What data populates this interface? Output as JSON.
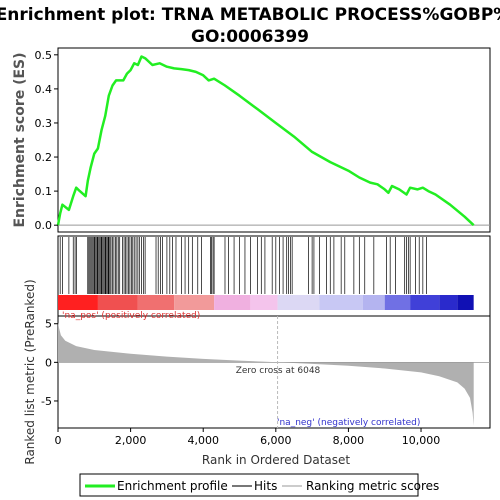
{
  "title_line1": "Enrichment plot: TRNA METABOLIC PROCESS%GOBP%",
  "title_line2": "GO:0006399",
  "colors": {
    "es_line": "#22ee22",
    "hit": "#000000",
    "metric_fill": "#b0b0b0",
    "pos_band": "#ee3333",
    "neg_band": "#2222cc",
    "pos_label": "#dd3333",
    "neg_label": "#3333cc",
    "zero_line": "#bbbbbb"
  },
  "legend": {
    "items": [
      {
        "label": "Enrichment profile",
        "color": "#22ee22",
        "kind": "thick-line"
      },
      {
        "label": "Hits",
        "color": "#777777",
        "kind": "line"
      },
      {
        "label": "Ranking metric scores",
        "color": "#cccccc",
        "kind": "line"
      }
    ]
  },
  "chart_data": {
    "type": "line",
    "xlabel": "Rank in Ordered Dataset",
    "xlim": [
      0,
      11900
    ],
    "x_ticks": [
      0,
      2000,
      4000,
      6000,
      8000,
      10000
    ],
    "x_tick_labels": [
      "0",
      "2,000",
      "4,000",
      "6,000",
      "8,000",
      "10,000"
    ],
    "es": {
      "ylabel": "Enrichment score (ES)",
      "ylim": [
        -0.02,
        0.52
      ],
      "y_ticks": [
        0.0,
        0.1,
        0.2,
        0.3,
        0.4,
        0.5
      ],
      "y_tick_labels": [
        "0.0",
        "0.1",
        "0.2",
        "0.3",
        "0.4",
        "0.5"
      ],
      "series": [
        {
          "name": "Enrichment profile",
          "points": [
            [
              0,
              0.0
            ],
            [
              60,
              0.035
            ],
            [
              120,
              0.06
            ],
            [
              300,
              0.045
            ],
            [
              420,
              0.085
            ],
            [
              500,
              0.11
            ],
            [
              600,
              0.1
            ],
            [
              760,
              0.085
            ],
            [
              820,
              0.13
            ],
            [
              900,
              0.17
            ],
            [
              1000,
              0.21
            ],
            [
              1100,
              0.225
            ],
            [
              1200,
              0.28
            ],
            [
              1300,
              0.32
            ],
            [
              1400,
              0.38
            ],
            [
              1500,
              0.41
            ],
            [
              1600,
              0.425
            ],
            [
              1800,
              0.425
            ],
            [
              1900,
              0.445
            ],
            [
              2000,
              0.455
            ],
            [
              2100,
              0.475
            ],
            [
              2200,
              0.47
            ],
            [
              2300,
              0.495
            ],
            [
              2400,
              0.49
            ],
            [
              2600,
              0.47
            ],
            [
              2800,
              0.475
            ],
            [
              3000,
              0.465
            ],
            [
              3200,
              0.46
            ],
            [
              3400,
              0.458
            ],
            [
              3600,
              0.455
            ],
            [
              3800,
              0.45
            ],
            [
              4000,
              0.44
            ],
            [
              4150,
              0.425
            ],
            [
              4300,
              0.43
            ],
            [
              4600,
              0.41
            ],
            [
              5000,
              0.38
            ],
            [
              5500,
              0.34
            ],
            [
              6000,
              0.3
            ],
            [
              6500,
              0.26
            ],
            [
              7000,
              0.215
            ],
            [
              7500,
              0.185
            ],
            [
              8000,
              0.16
            ],
            [
              8300,
              0.14
            ],
            [
              8600,
              0.125
            ],
            [
              8800,
              0.12
            ],
            [
              9000,
              0.105
            ],
            [
              9100,
              0.095
            ],
            [
              9200,
              0.115
            ],
            [
              9400,
              0.105
            ],
            [
              9600,
              0.09
            ],
            [
              9700,
              0.11
            ],
            [
              9900,
              0.105
            ],
            [
              10050,
              0.11
            ],
            [
              10200,
              0.1
            ],
            [
              10400,
              0.09
            ],
            [
              10800,
              0.06
            ],
            [
              11200,
              0.025
            ],
            [
              11450,
              0.0
            ]
          ]
        }
      ]
    },
    "hits": [
      60,
      120,
      300,
      420,
      470,
      510,
      820,
      850,
      880,
      910,
      940,
      970,
      1000,
      1020,
      1050,
      1080,
      1100,
      1130,
      1160,
      1190,
      1210,
      1240,
      1270,
      1300,
      1320,
      1350,
      1380,
      1400,
      1430,
      1460,
      1500,
      1540,
      1580,
      1620,
      1660,
      1700,
      1780,
      1820,
      1860,
      1900,
      1940,
      1980,
      2020,
      2060,
      2100,
      2150,
      2200,
      2240,
      2300,
      2360,
      2400,
      2700,
      2760,
      2820,
      2880,
      3000,
      3080,
      3150,
      3250,
      3400,
      3500,
      3600,
      3700,
      3850,
      3950,
      4200,
      4230,
      4270,
      4300,
      4600,
      4700,
      4850,
      5000,
      5150,
      5300,
      5500,
      5600,
      5700,
      5900,
      6000,
      6100,
      6200,
      6300,
      6350,
      6400,
      6450,
      6900,
      7000,
      7050,
      7200,
      7400,
      7500,
      7600,
      7800,
      7900,
      8150,
      8300,
      8450,
      8700,
      9050,
      9150,
      9300,
      9550,
      9600,
      9650,
      9700,
      9850,
      9950,
      10050,
      10150
    ],
    "band_segments": [
      {
        "start": 0,
        "end": 1100,
        "color": "#ff2020"
      },
      {
        "start": 1100,
        "end": 2200,
        "color": "#f05050"
      },
      {
        "start": 2200,
        "end": 3200,
        "color": "#f07070"
      },
      {
        "start": 3200,
        "end": 4300,
        "color": "#f29a9a"
      },
      {
        "start": 4300,
        "end": 5300,
        "color": "#f0b0e0"
      },
      {
        "start": 5300,
        "end": 6048,
        "color": "#f4c4ec"
      },
      {
        "start": 6048,
        "end": 7200,
        "color": "#dcd8f4"
      },
      {
        "start": 7200,
        "end": 8400,
        "color": "#c8c8f4"
      },
      {
        "start": 8400,
        "end": 9000,
        "color": "#b4b4f0"
      },
      {
        "start": 9000,
        "end": 9700,
        "color": "#7070e4"
      },
      {
        "start": 9700,
        "end": 10500,
        "color": "#4040d8"
      },
      {
        "start": 10500,
        "end": 11000,
        "color": "#2a2acc"
      },
      {
        "start": 11000,
        "end": 11450,
        "color": "#1010b4"
      }
    ],
    "metric": {
      "ylabel": "Ranked list metric (PreRanked)",
      "ylim": [
        -8.5,
        6
      ],
      "y_ticks": [
        -5,
        0,
        5
      ],
      "y_tick_labels": [
        "-5",
        "0",
        "5"
      ],
      "points": [
        [
          0,
          5.2
        ],
        [
          30,
          4.4
        ],
        [
          80,
          3.5
        ],
        [
          200,
          2.8
        ],
        [
          500,
          2.1
        ],
        [
          1000,
          1.6
        ],
        [
          2000,
          1.1
        ],
        [
          3000,
          0.75
        ],
        [
          4000,
          0.45
        ],
        [
          5000,
          0.22
        ],
        [
          6048,
          0.0
        ],
        [
          7000,
          -0.2
        ],
        [
          8000,
          -0.45
        ],
        [
          9000,
          -0.8
        ],
        [
          10000,
          -1.3
        ],
        [
          10500,
          -1.8
        ],
        [
          11000,
          -2.6
        ],
        [
          11200,
          -3.4
        ],
        [
          11350,
          -4.6
        ],
        [
          11420,
          -6.5
        ],
        [
          11450,
          -8.2
        ]
      ]
    },
    "annotations": {
      "pos_label": "'na_pos' (positively correlated)",
      "neg_label": "'na_neg' (negatively correlated)",
      "zero_cross": "Zero cross at 6048",
      "zero_cross_rank": 6048
    }
  }
}
